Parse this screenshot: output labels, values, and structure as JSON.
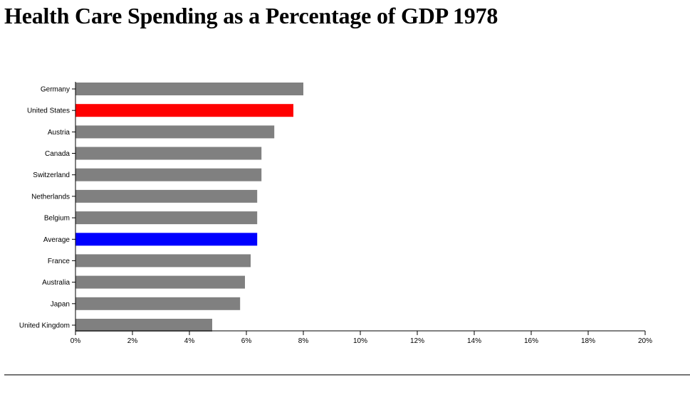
{
  "page": {
    "title": "Health Care Spending as a Percentage of GDP 1978"
  },
  "chart_data": {
    "type": "bar",
    "orientation": "horizontal",
    "title": "Health Care Spending as a Percentage of GDP 1978",
    "xlabel": "",
    "ylabel": "",
    "categories": [
      "Germany",
      "United States",
      "Austria",
      "Canada",
      "Switzerland",
      "Netherlands",
      "Belgium",
      "Average",
      "France",
      "Australia",
      "Japan",
      "United Kingdom"
    ],
    "values": [
      8.0,
      7.65,
      6.98,
      6.53,
      6.53,
      6.38,
      6.38,
      6.38,
      6.15,
      5.95,
      5.78,
      4.8
    ],
    "unit": "%",
    "xlim": [
      0,
      20
    ],
    "xticks": [
      0,
      2,
      4,
      6,
      8,
      10,
      12,
      14,
      16,
      18,
      20
    ],
    "xtick_labels": [
      "0%",
      "2%",
      "4%",
      "6%",
      "8%",
      "10%",
      "12%",
      "14%",
      "16%",
      "18%",
      "20%"
    ],
    "grid": false,
    "legend": "none",
    "colors": {
      "default": "#808080",
      "highlight": {
        "United States": "#ff0000",
        "Average": "#0000ff"
      }
    }
  }
}
